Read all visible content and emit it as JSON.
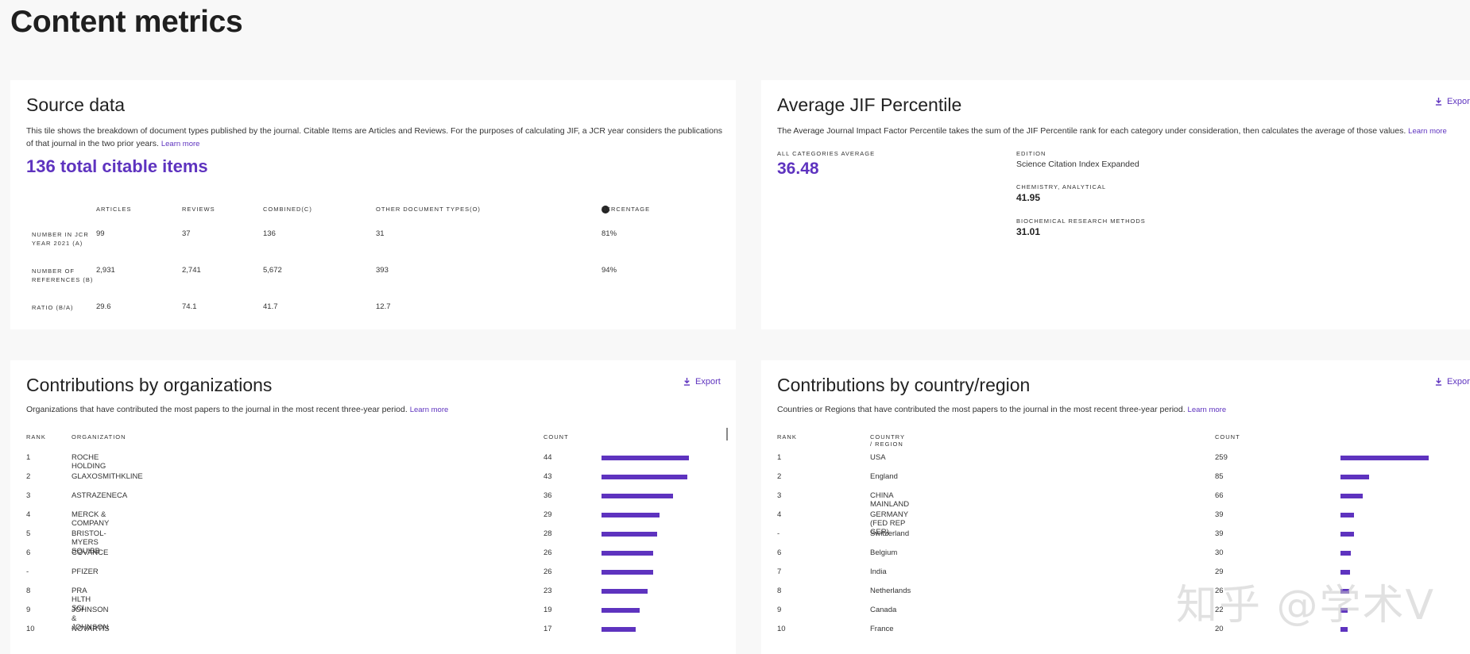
{
  "page": {
    "title": "Content metrics"
  },
  "source_data": {
    "title": "Source data",
    "description": "This tile shows the breakdown of document types published by the journal. Citable Items are Articles and Reviews. For the purposes of calculating JIF, a JCR year considers the publications of that journal in the two prior years.",
    "learn_more": "Learn more",
    "total_citable": "136 total citable items",
    "columns": [
      "ARTICLES",
      "REVIEWS",
      "COMBINED(C)",
      "OTHER DOCUMENT TYPES(O)",
      "PERCENTAGE"
    ],
    "rows": [
      {
        "label": "NUMBER IN JCR YEAR 2021 (A)",
        "articles": "99",
        "reviews": "37",
        "combined": "136",
        "other": "31",
        "percentage": "81%"
      },
      {
        "label": "NUMBER OF REFERENCES (B)",
        "articles": "2,931",
        "reviews": "2,741",
        "combined": "5,672",
        "other": "393",
        "percentage": "94%"
      },
      {
        "label": "RATIO (B/A)",
        "articles": "29.6",
        "reviews": "74.1",
        "combined": "41.7",
        "other": "12.7",
        "percentage": ""
      }
    ]
  },
  "jif": {
    "title": "Average JIF Percentile",
    "export_label": "Export",
    "description": "The Average Journal Impact Factor Percentile takes the sum of the JIF Percentile rank for each category under consideration, then calculates the average of those values.",
    "learn_more": "Learn more",
    "all_avg_label": "ALL CATEGORIES AVERAGE",
    "all_avg_value": "36.48",
    "edition_label": "EDITION",
    "edition_value": "Science Citation Index Expanded",
    "categories": [
      {
        "name": "CHEMISTRY, ANALYTICAL",
        "value": "41.95"
      },
      {
        "name": "BIOCHEMICAL RESEARCH METHODS",
        "value": "31.01"
      }
    ]
  },
  "orgs": {
    "title": "Contributions by organizations",
    "export_label": "Export",
    "description": "Organizations that have contributed the most papers to the journal in the most recent three-year period.",
    "learn_more": "Learn more",
    "columns": {
      "rank": "RANK",
      "name": "ORGANIZATION",
      "count": "COUNT"
    },
    "max": 44,
    "rows": [
      {
        "rank": "1",
        "name": "ROCHE HOLDING",
        "count": "44",
        "value": 44
      },
      {
        "rank": "2",
        "name": "GLAXOSMITHKLINE",
        "count": "43",
        "value": 43
      },
      {
        "rank": "3",
        "name": "ASTRAZENECA",
        "count": "36",
        "value": 36
      },
      {
        "rank": "4",
        "name": "MERCK & COMPANY",
        "count": "29",
        "value": 29
      },
      {
        "rank": "5",
        "name": "BRISTOL-MYERS SQUIBB",
        "count": "28",
        "value": 28
      },
      {
        "rank": "6",
        "name": "COVANCE",
        "count": "26",
        "value": 26
      },
      {
        "rank": "-",
        "name": "PFIZER",
        "count": "26",
        "value": 26
      },
      {
        "rank": "8",
        "name": "PRA HLTH SCI",
        "count": "23",
        "value": 23
      },
      {
        "rank": "9",
        "name": "JOHNSON & JOHNSON",
        "count": "19",
        "value": 19
      },
      {
        "rank": "10",
        "name": "NOVARTIS",
        "count": "17",
        "value": 17
      }
    ]
  },
  "countries": {
    "title": "Contributions by country/region",
    "export_label": "Export",
    "description": "Countries or Regions that have contributed the most papers to the journal in the most recent three-year period.",
    "learn_more": "Learn more",
    "columns": {
      "rank": "RANK",
      "name": "COUNTRY / REGION",
      "count": "COUNT"
    },
    "max": 259,
    "rows": [
      {
        "rank": "1",
        "name": "USA",
        "count": "259",
        "value": 259
      },
      {
        "rank": "2",
        "name": "England",
        "count": "85",
        "value": 85
      },
      {
        "rank": "3",
        "name": "CHINA MAINLAND",
        "count": "66",
        "value": 66
      },
      {
        "rank": "4",
        "name": "GERMANY (FED REP GER)",
        "count": "39",
        "value": 39
      },
      {
        "rank": "-",
        "name": "Switzerland",
        "count": "39",
        "value": 39
      },
      {
        "rank": "6",
        "name": "Belgium",
        "count": "30",
        "value": 30
      },
      {
        "rank": "7",
        "name": "India",
        "count": "29",
        "value": 29
      },
      {
        "rank": "8",
        "name": "Netherlands",
        "count": "26",
        "value": 26
      },
      {
        "rank": "9",
        "name": "Canada",
        "count": "22",
        "value": 22
      },
      {
        "rank": "10",
        "name": "France",
        "count": "20",
        "value": 20
      }
    ]
  },
  "watermark": "知乎 @学术V",
  "colors": {
    "accent": "#5e33bf",
    "background": "#f8f8f8"
  }
}
